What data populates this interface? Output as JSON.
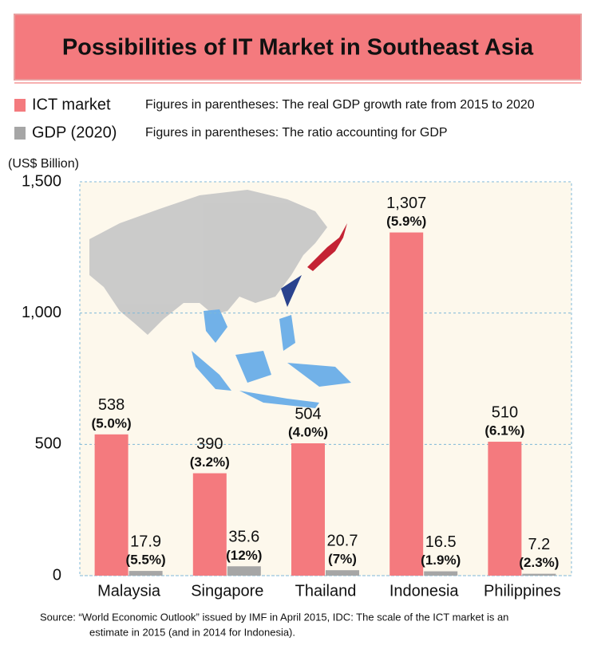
{
  "chart_data": {
    "type": "bar",
    "title": "Possibilities of IT Market in Southeast Asia",
    "y_label": "(US$ Billion)",
    "categories": [
      "Malaysia",
      "Singapore",
      "Thailand",
      "Indonesia",
      "Philippines"
    ],
    "series": [
      {
        "name": "ICT market",
        "note": "Figures in parentheses: The real GDP growth rate from 2015 to 2020",
        "color": "#f47a7e",
        "values": [
          538,
          390,
          504,
          1307,
          510
        ],
        "value_labels": [
          "538",
          "390",
          "504",
          "1,307",
          "510"
        ],
        "sublabels": [
          "(5.0%)",
          "(3.2%)",
          "(4.0%)",
          "(5.9%)",
          "(6.1%)"
        ]
      },
      {
        "name": "GDP (2020)",
        "note": "Figures in parentheses: The ratio accounting for GDP",
        "color": "#a6a6a6",
        "values": [
          17.9,
          35.6,
          20.7,
          16.5,
          7.2
        ],
        "sublabels": [
          "(5.5%)",
          "(12%)",
          "(7%)",
          "(1.9%)",
          "(2.3%)"
        ]
      }
    ],
    "ylim": [
      0,
      1500
    ],
    "yticks": [
      0,
      500,
      {
        "value": 1000,
        "label": "1,000"
      },
      {
        "value": 1500,
        "label": "1,500"
      }
    ],
    "grid": true,
    "source": [
      "Source:  “World Economic Outlook” issued by IMF in April 2015, IDC: The scale of the ICT market is an",
      "estimate in 2015 (and in 2014 for Indonesia)."
    ]
  }
}
